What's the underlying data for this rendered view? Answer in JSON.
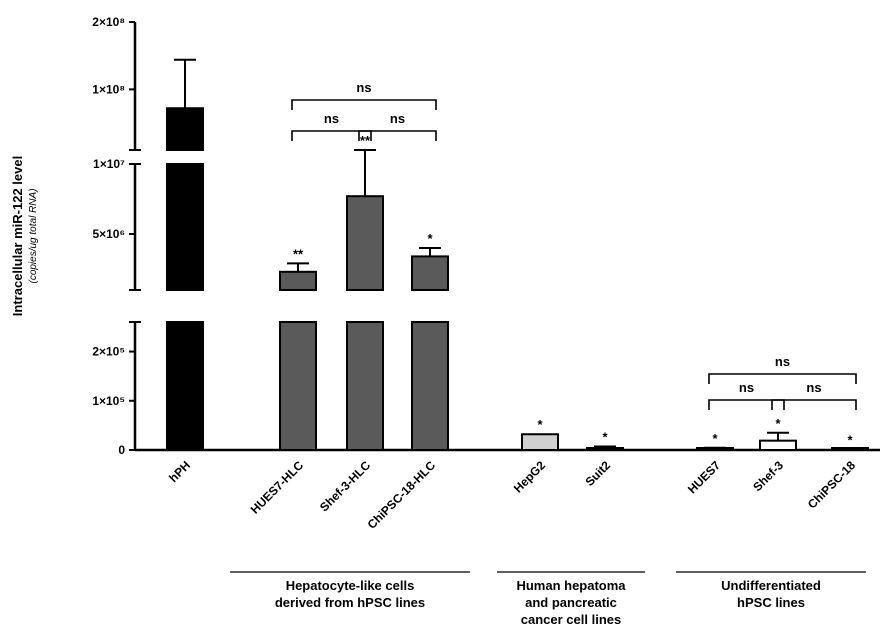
{
  "chart_data": {
    "type": "bar",
    "ylabel": "Intracellular miR-122 level",
    "ylabel_sub": "(copies/ug total RNA)",
    "y_segments": [
      {
        "range": [
          0,
          260000
        ],
        "ticks": [
          {
            "v": 0,
            "label": "0"
          },
          {
            "v": 100000,
            "label": "1×10⁵"
          },
          {
            "v": 200000,
            "label": "2×10⁵"
          }
        ]
      },
      {
        "range": [
          1000000,
          10000000
        ],
        "ticks": [
          {
            "v": 5000000,
            "label": "5×10⁶"
          },
          {
            "v": 10000000,
            "label": "1×10⁷"
          }
        ]
      },
      {
        "range": [
          10000000,
          200000000
        ],
        "ticks": [
          {
            "v": 100000000,
            "label": "1×10⁸"
          },
          {
            "v": 200000000,
            "label": "2×10⁸"
          }
        ]
      }
    ],
    "categories": [
      "hPH",
      "HUES7-HLC",
      "Shef-3-HLC",
      "ChiPSC-18-HLC",
      "HepG2",
      "Suit2",
      "HUES7",
      "Shef-3",
      "ChiPSC-18"
    ],
    "values": [
      72000000,
      2300000,
      7700000,
      3400000,
      32000,
      4000,
      3000,
      19000,
      1000
    ],
    "errors": [
      72000000,
      600000,
      2300000,
      600000,
      0,
      3000,
      1500,
      16000,
      0
    ],
    "colors": [
      "#000000",
      "#5a5a5a",
      "#5a5a5a",
      "#5a5a5a",
      "#d0d0d0",
      "#d0d0d0",
      "#ffffff",
      "#ffffff",
      "#ffffff"
    ],
    "significance": [
      "",
      "**",
      "**",
      "*",
      "*",
      "*",
      "*",
      "*",
      "*"
    ],
    "comparisons": [
      {
        "from": 1,
        "to": 3,
        "label": "ns",
        "panel": "top"
      },
      {
        "from": 1,
        "to": 2,
        "label": "ns",
        "panel": "top"
      },
      {
        "from": 2,
        "to": 3,
        "label": "ns",
        "panel": "top"
      },
      {
        "from": 6,
        "to": 8,
        "label": "ns",
        "panel": "bottom"
      },
      {
        "from": 6,
        "to": 7,
        "label": "ns",
        "panel": "bottom"
      },
      {
        "from": 7,
        "to": 8,
        "label": "ns",
        "panel": "bottom"
      }
    ],
    "groups": [
      {
        "from": 1,
        "to": 3,
        "lines": [
          "Hepatocyte-like cells",
          "derived from hPSC lines"
        ]
      },
      {
        "from": 4,
        "to": 5,
        "lines": [
          "Human hepatoma",
          "and pancreatic",
          "cancer cell lines"
        ]
      },
      {
        "from": 6,
        "to": 8,
        "lines": [
          "Undifferentiated",
          "hPSC lines"
        ]
      }
    ]
  }
}
